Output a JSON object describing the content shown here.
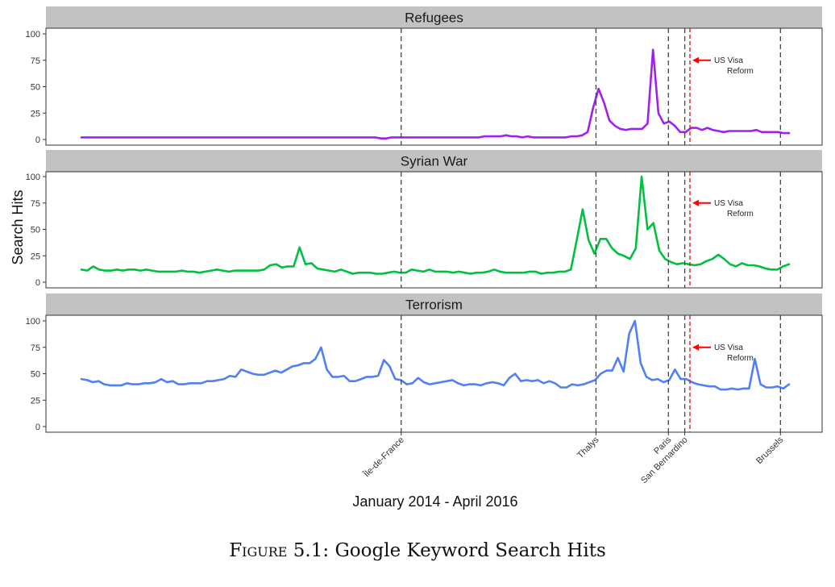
{
  "caption": {
    "label": "Figure 5.1:",
    "text": "Google Keyword Search Hits"
  },
  "chart_data": {
    "type": "line",
    "layout": "facet-vertical",
    "xlabel": "January 2014 - April 2016",
    "ylabel": "Search Hits",
    "xlim": [
      "2014-01",
      "2016-04"
    ],
    "ylim": [
      0,
      100
    ],
    "y_ticks": [
      0,
      25,
      50,
      75,
      100
    ],
    "grid": false,
    "events": [
      {
        "label": "Île-de-France",
        "date": "2015-01-07",
        "style": "dashed",
        "color": "#444444"
      },
      {
        "label": "Thalys",
        "date": "2015-08-21",
        "style": "dashed",
        "color": "#444444"
      },
      {
        "label": "Paris",
        "date": "2015-11-13",
        "style": "dashed",
        "color": "#444444"
      },
      {
        "label": "San Bernardino",
        "date": "2015-12-02",
        "style": "dashed",
        "color": "#444444"
      },
      {
        "label": "Brussels",
        "date": "2016-03-22",
        "style": "dashed",
        "color": "#444444"
      }
    ],
    "annotation": {
      "text_line1": "US Visa",
      "text_line2": "Reform",
      "date": "2015-12-08",
      "y": 75,
      "color": "#ff0000"
    },
    "panels": [
      {
        "title": "Refugees",
        "color": "#a020f0",
        "values": [
          2,
          2,
          2,
          2,
          2,
          2,
          2,
          2,
          2,
          2,
          2,
          2,
          2,
          2,
          2,
          2,
          2,
          2,
          2,
          2,
          2,
          2,
          2,
          2,
          2,
          2,
          2,
          2,
          2,
          2,
          2,
          2,
          2,
          2,
          2,
          2,
          2,
          2,
          2,
          2,
          2,
          2,
          2,
          2,
          2,
          2,
          2,
          2,
          2,
          2,
          2,
          2,
          2,
          2,
          2,
          1,
          1,
          2,
          2,
          2,
          2,
          2,
          2,
          2,
          2,
          2,
          2,
          2,
          2,
          2,
          2,
          2,
          2,
          2,
          3,
          3,
          3,
          3,
          4,
          3,
          3,
          2,
          3,
          2,
          2,
          2,
          2,
          2,
          2,
          2,
          3,
          3,
          4,
          7,
          30,
          48,
          35,
          18,
          13,
          10,
          9,
          10,
          10,
          10,
          15,
          85,
          25,
          15,
          17,
          13,
          7,
          7,
          11,
          11,
          9,
          11,
          9,
          8,
          7,
          8,
          8,
          8,
          8,
          8,
          9,
          7,
          7,
          7,
          7,
          6,
          6
        ]
      },
      {
        "title": "Syrian War",
        "color": "#00c040",
        "values": [
          12,
          11,
          15,
          12,
          11,
          11,
          12,
          11,
          12,
          12,
          11,
          12,
          11,
          10,
          10,
          10,
          10,
          11,
          10,
          10,
          9,
          10,
          11,
          12,
          11,
          10,
          11,
          11,
          11,
          11,
          11,
          12,
          16,
          17,
          14,
          15,
          15,
          33,
          17,
          18,
          13,
          12,
          11,
          10,
          12,
          10,
          8,
          9,
          9,
          9,
          8,
          8,
          9,
          10,
          9,
          9,
          12,
          11,
          10,
          12,
          10,
          10,
          10,
          9,
          10,
          9,
          8,
          9,
          9,
          10,
          12,
          10,
          9,
          9,
          9,
          9,
          10,
          10,
          8,
          9,
          9,
          10,
          10,
          12,
          40,
          69,
          40,
          27,
          41,
          41,
          32,
          27,
          25,
          22,
          32,
          100,
          50,
          56,
          30,
          22,
          19,
          17,
          18,
          17,
          16,
          17,
          20,
          22,
          26,
          22,
          17,
          15,
          18,
          16,
          16,
          15,
          13,
          12,
          12,
          15,
          17
        ]
      },
      {
        "title": "Terrorism",
        "color": "#5080f8",
        "values": [
          45,
          44,
          42,
          43,
          40,
          39,
          39,
          39,
          41,
          40,
          40,
          41,
          41,
          42,
          45,
          42,
          43,
          40,
          40,
          41,
          41,
          41,
          43,
          43,
          44,
          45,
          48,
          47,
          54,
          52,
          50,
          49,
          49,
          51,
          53,
          51,
          54,
          57,
          58,
          60,
          60,
          64,
          75,
          54,
          47,
          47,
          48,
          43,
          43,
          45,
          47,
          47,
          48,
          63,
          57,
          45,
          44,
          40,
          41,
          46,
          42,
          40,
          41,
          42,
          43,
          44,
          41,
          39,
          40,
          40,
          39,
          41,
          42,
          41,
          39,
          46,
          50,
          43,
          44,
          43,
          44,
          41,
          43,
          41,
          37,
          37,
          40,
          39,
          40,
          42,
          44,
          50,
          53,
          53,
          65,
          52,
          88,
          100,
          60,
          47,
          44,
          45,
          42,
          44,
          54,
          45,
          45,
          42,
          40,
          39,
          38,
          38,
          35,
          35,
          36,
          35,
          36,
          36,
          64,
          40,
          37,
          37,
          38,
          36,
          40
        ]
      }
    ]
  }
}
